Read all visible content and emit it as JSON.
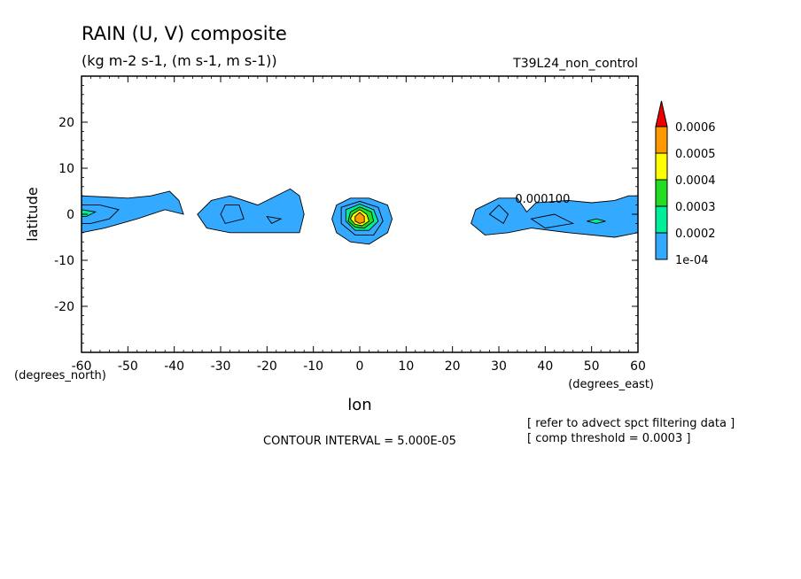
{
  "chart_data": {
    "type": "contour",
    "title": "RAIN (U, V) composite",
    "units": "(kg m-2 s-1, (m s-1, m s-1))",
    "run_label": "T39L24_non_control",
    "xlabel": "lon",
    "ylabel": "latitude",
    "x_units": "(degrees_east)",
    "y_units": "(degrees_north)",
    "xlim": [
      -60,
      60
    ],
    "ylim": [
      -30,
      30
    ],
    "x_ticks": [
      -60,
      -50,
      -40,
      -30,
      -20,
      -10,
      0,
      10,
      20,
      30,
      40,
      50,
      60
    ],
    "y_ticks": [
      -20,
      -10,
      0,
      10,
      20
    ],
    "contour_interval": "CONTOUR INTERVAL = 5.000E-05",
    "contour_label": "0.000100",
    "notes": [
      "[ refer to advect spct filtering data ]",
      "[ comp threshold = 0.0003 ]"
    ],
    "colorbar": {
      "labels": [
        "0.0006",
        "0.0005",
        "0.0004",
        "0.0003",
        "0.0002",
        "1e-04"
      ],
      "colors": [
        "#ff9900",
        "#ffff00",
        "#22dd22",
        "#00ee99",
        "#33aaff"
      ],
      "overflow_color": "#ee0000"
    },
    "regions": [
      {
        "name": "west-blob",
        "level": 0.0001,
        "outline": [
          [
            -60,
            4
          ],
          [
            -50,
            3.5
          ],
          [
            -45,
            4
          ],
          [
            -41,
            5
          ],
          [
            -39,
            3
          ],
          [
            -38,
            0
          ],
          [
            -42,
            1
          ],
          [
            -48,
            -1
          ],
          [
            -55,
            -3
          ],
          [
            -60,
            -4
          ]
        ]
      },
      {
        "name": "west-inner-a",
        "level": 0.00015,
        "outline": [
          [
            -60,
            2
          ],
          [
            -56,
            2
          ],
          [
            -52,
            1
          ],
          [
            -54,
            -1
          ],
          [
            -58,
            -2
          ],
          [
            -60,
            -2
          ]
        ]
      },
      {
        "name": "west-inner-b",
        "level": 0.0002,
        "outline": [
          [
            -60,
            1
          ],
          [
            -57,
            0.5
          ],
          [
            -59,
            -0.5
          ],
          [
            -60,
            -0.5
          ]
        ]
      },
      {
        "name": "mid-blob",
        "level": 0.0001,
        "outline": [
          [
            -32,
            3
          ],
          [
            -28,
            4
          ],
          [
            -22,
            2
          ],
          [
            -15,
            5.5
          ],
          [
            -13,
            4
          ],
          [
            -12,
            0
          ],
          [
            -13,
            -4
          ],
          [
            -22,
            -4
          ],
          [
            -28,
            -4
          ],
          [
            -33,
            -3
          ],
          [
            -35,
            0
          ]
        ]
      },
      {
        "name": "mid-inner-a",
        "level": 0.00015,
        "outline": [
          [
            -29,
            2
          ],
          [
            -26,
            2
          ],
          [
            -25,
            -1
          ],
          [
            -29,
            -2
          ],
          [
            -30,
            0
          ]
        ]
      },
      {
        "name": "mid-inner-b",
        "level": 0.00015,
        "outline": [
          [
            -20,
            -0.5
          ],
          [
            -17,
            -1
          ],
          [
            -19,
            -2
          ]
        ]
      },
      {
        "name": "center-blob",
        "level": 0.0001,
        "outline": [
          [
            -5,
            2
          ],
          [
            -2,
            3.5
          ],
          [
            2,
            3.5
          ],
          [
            6,
            2
          ],
          [
            7,
            -1
          ],
          [
            6,
            -4
          ],
          [
            2,
            -6.5
          ],
          [
            -2,
            -6
          ],
          [
            -5,
            -4
          ],
          [
            -6,
            -1
          ]
        ]
      },
      {
        "name": "center-l2",
        "level": 0.00015,
        "outline": [
          [
            -4,
            1.5
          ],
          [
            0,
            2.8
          ],
          [
            4,
            1.5
          ],
          [
            5,
            -1.5
          ],
          [
            3,
            -4.5
          ],
          [
            -1,
            -4.5
          ],
          [
            -4,
            -2
          ]
        ]
      },
      {
        "name": "center-l3",
        "level": 0.0002,
        "outline": [
          [
            -3,
            1
          ],
          [
            0,
            2.2
          ],
          [
            3,
            1
          ],
          [
            4,
            -1.5
          ],
          [
            2,
            -3.5
          ],
          [
            -1,
            -3.5
          ],
          [
            -3,
            -1.5
          ]
        ]
      },
      {
        "name": "center-l4",
        "level": 0.0003,
        "outline": [
          [
            -2,
            0.5
          ],
          [
            0,
            1.6
          ],
          [
            2.5,
            0.5
          ],
          [
            3,
            -1.5
          ],
          [
            1,
            -3
          ],
          [
            -1,
            -2.8
          ],
          [
            -2.5,
            -1.5
          ]
        ]
      },
      {
        "name": "center-l5",
        "level": 0.0004,
        "outline": [
          [
            -1.5,
            0
          ],
          [
            0,
            1
          ],
          [
            1.5,
            0
          ],
          [
            2,
            -1.5
          ],
          [
            0.5,
            -2.5
          ],
          [
            -1,
            -2.2
          ],
          [
            -2,
            -1
          ]
        ]
      },
      {
        "name": "center-l6",
        "level": 0.0005,
        "outline": [
          [
            -1,
            -0.5
          ],
          [
            0,
            0.4
          ],
          [
            1,
            -0.5
          ],
          [
            1,
            -1.7
          ],
          [
            0,
            -2
          ],
          [
            -1,
            -1.5
          ]
        ]
      },
      {
        "name": "east-blob",
        "level": 0.0001,
        "outline": [
          [
            25,
            1
          ],
          [
            30,
            3.5
          ],
          [
            34,
            3.5
          ],
          [
            36,
            0.5
          ],
          [
            38,
            2.5
          ],
          [
            45,
            3
          ],
          [
            50,
            2.5
          ],
          [
            55,
            3
          ],
          [
            58,
            4
          ],
          [
            60,
            4
          ],
          [
            60,
            -4
          ],
          [
            55,
            -5
          ],
          [
            45,
            -4
          ],
          [
            37,
            -3
          ],
          [
            32,
            -4
          ],
          [
            27,
            -4.5
          ],
          [
            24,
            -2
          ]
        ]
      },
      {
        "name": "east-inner-a",
        "level": 0.00015,
        "outline": [
          [
            28,
            0
          ],
          [
            30,
            2
          ],
          [
            32,
            0
          ],
          [
            31,
            -2
          ]
        ]
      },
      {
        "name": "east-inner-b",
        "level": 0.00015,
        "outline": [
          [
            37,
            -1
          ],
          [
            42,
            0
          ],
          [
            46,
            -2
          ],
          [
            40,
            -3
          ]
        ]
      },
      {
        "name": "east-inner-c",
        "level": 0.0002,
        "outline": [
          [
            49,
            -1.5
          ],
          [
            51,
            -1
          ],
          [
            53,
            -1.5
          ],
          [
            51,
            -2
          ]
        ]
      }
    ]
  }
}
